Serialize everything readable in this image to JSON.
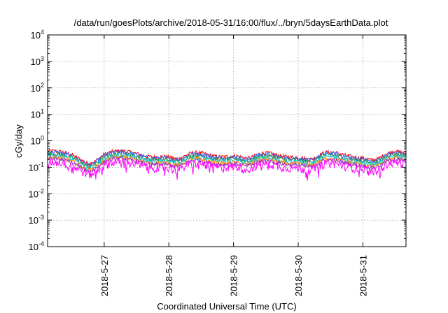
{
  "chart_data": {
    "type": "line",
    "title": "/data/run/goesPlots/archive/2018-05-31/16:00/flux/../bryn/5daysEarthData.plot",
    "xlabel": "Coordinated Universal Time (UTC)",
    "ylabel": "cGy/day",
    "yscale": "log",
    "ylim": [
      0.0001,
      10000
    ],
    "y_ticks": [
      {
        "base": "10",
        "exp": "-4",
        "value": 0.0001
      },
      {
        "base": "10",
        "exp": "-3",
        "value": 0.001
      },
      {
        "base": "10",
        "exp": "-2",
        "value": 0.01
      },
      {
        "base": "10",
        "exp": "-1",
        "value": 0.1
      },
      {
        "base": "10",
        "exp": "0",
        "value": 1
      },
      {
        "base": "10",
        "exp": "1",
        "value": 10
      },
      {
        "base": "10",
        "exp": "2",
        "value": 100
      },
      {
        "base": "10",
        "exp": "3",
        "value": 1000
      },
      {
        "base": "10",
        "exp": "4",
        "value": 10000
      }
    ],
    "xlim": [
      "2018-05-26 03:00",
      "2018-05-31 16:00"
    ],
    "x_ticks": [
      "2018-5-27",
      "2018-5-28",
      "2018-5-29",
      "2018-5-30",
      "2018-5-31"
    ],
    "grid": true,
    "legend": "none",
    "series": [
      {
        "color": "#ff0000",
        "baseline": 0.33,
        "swing": 0.12
      },
      {
        "color": "#3366ff",
        "baseline": 0.3,
        "swing": 0.11
      },
      {
        "color": "#2e8b57",
        "baseline": 0.26,
        "swing": 0.09
      },
      {
        "color": "#00cccc",
        "baseline": 0.22,
        "swing": 0.07
      },
      {
        "color": "#ff8800",
        "baseline": 0.19,
        "swing": 0.06
      },
      {
        "color": "#9933cc",
        "baseline": 0.17,
        "swing": 0.05
      },
      {
        "color": "#ff00ff",
        "baseline": 0.13,
        "swing": 0.05
      }
    ]
  }
}
